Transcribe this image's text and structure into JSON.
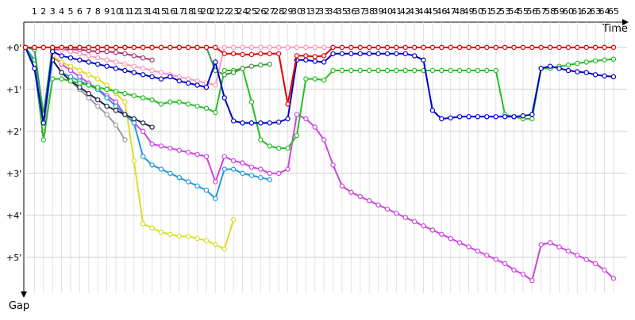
{
  "chart_data": {
    "type": "line",
    "x_label": "Time",
    "y_label": "Gap",
    "x": [
      0,
      1,
      2,
      3,
      4,
      5,
      6,
      7,
      8,
      9,
      10,
      11,
      12,
      13,
      14,
      15,
      16,
      17,
      18,
      19,
      20,
      21,
      22,
      23,
      24,
      25,
      26,
      27,
      28,
      29,
      30,
      31,
      32,
      33,
      34,
      35,
      36,
      37,
      38,
      39,
      40,
      41,
      42,
      43,
      44,
      45,
      46,
      47,
      48,
      49,
      50,
      51,
      52,
      53,
      54,
      55,
      56,
      57,
      58,
      59,
      60,
      61,
      62,
      63,
      64,
      65
    ],
    "xlim": [
      0,
      66.5
    ],
    "xticks": [
      1,
      2,
      3,
      4,
      5,
      6,
      7,
      8,
      9,
      10,
      11,
      12,
      13,
      14,
      15,
      16,
      17,
      18,
      19,
      20,
      21,
      22,
      23,
      24,
      25,
      26,
      27,
      28,
      29,
      30,
      31,
      32,
      33,
      34,
      35,
      36,
      37,
      38,
      39,
      40,
      41,
      42,
      43,
      44,
      45,
      46,
      47,
      48,
      49,
      50,
      51,
      52,
      53,
      54,
      55,
      56,
      57,
      58,
      59,
      60,
      61,
      62,
      63,
      64,
      65
    ],
    "ylim": [
      -0.6,
      5.85
    ],
    "y_inverted": true,
    "yticks": [
      {
        "value": 0,
        "label": "+0'"
      },
      {
        "value": 1,
        "label": "+1'"
      },
      {
        "value": 2,
        "label": "+2'"
      },
      {
        "value": 3,
        "label": "+3'"
      },
      {
        "value": 4,
        "label": "+4'"
      },
      {
        "value": 5,
        "label": "+5'"
      }
    ],
    "grid": true,
    "series": [
      {
        "color": "#cc44dd",
        "values": [
          0,
          0.3,
          2.0,
          0.2,
          0.4,
          0.55,
          0.7,
          0.85,
          1.0,
          1.15,
          1.3,
          1.6,
          1.8,
          2.0,
          2.3,
          2.35,
          2.4,
          2.45,
          2.5,
          2.55,
          2.6,
          3.2,
          2.6,
          2.7,
          2.75,
          2.85,
          2.9,
          3.0,
          3.0,
          2.9,
          1.6,
          1.7,
          1.9,
          2.2,
          2.8,
          3.3,
          3.45,
          3.55,
          3.65,
          3.75,
          3.85,
          3.95,
          4.05,
          4.15,
          4.25,
          4.35,
          4.45,
          4.55,
          4.65,
          4.75,
          4.85,
          4.95,
          5.05,
          5.15,
          5.3,
          5.4,
          5.55,
          4.7,
          4.65,
          4.75,
          4.85,
          4.95,
          5.05,
          5.15,
          5.3,
          5.5
        ]
      },
      {
        "color": "#dddd22",
        "values": [
          0,
          0.3,
          1.9,
          0.2,
          0.35,
          0.45,
          0.55,
          0.65,
          0.75,
          0.9,
          1.1,
          1.3,
          2.7,
          4.2,
          4.3,
          4.4,
          4.45,
          4.5,
          4.5,
          4.55,
          4.6,
          4.7,
          4.8,
          4.1,
          null,
          null,
          null,
          null,
          null,
          null,
          null,
          null,
          null,
          null,
          null,
          null,
          null,
          null,
          null,
          null,
          null,
          null,
          null,
          null,
          null,
          null,
          null,
          null,
          null,
          null,
          null,
          null,
          null,
          null,
          null,
          null,
          null,
          null,
          null,
          null,
          null,
          null,
          null,
          null,
          null,
          null
        ]
      },
      {
        "color": "#2299dd",
        "values": [
          0,
          0.3,
          1.8,
          0.3,
          0.6,
          0.7,
          0.8,
          0.9,
          1.0,
          1.2,
          1.4,
          1.6,
          1.8,
          2.6,
          2.8,
          2.9,
          3.0,
          3.1,
          3.2,
          3.3,
          3.4,
          3.6,
          2.9,
          2.9,
          3.0,
          3.05,
          3.1,
          3.15,
          null,
          null,
          null,
          null,
          null,
          null,
          null,
          null,
          null,
          null,
          null,
          null,
          null,
          null,
          null,
          null,
          null,
          null,
          null,
          null,
          null,
          null,
          null,
          null,
          null,
          null,
          null,
          null,
          null,
          null,
          null,
          null,
          null,
          null,
          null,
          null,
          null,
          null
        ]
      },
      {
        "color": "#999999",
        "values": [
          null,
          null,
          null,
          0.3,
          0.6,
          0.8,
          1.0,
          1.2,
          1.4,
          1.6,
          1.85,
          2.2,
          null,
          null,
          null,
          null,
          null,
          null,
          null,
          null,
          null,
          null,
          null,
          null,
          null,
          null,
          null,
          null,
          null,
          null,
          null,
          null,
          null,
          null,
          null,
          null,
          null,
          null,
          null,
          null,
          null,
          null,
          null,
          null,
          null,
          null,
          null,
          null,
          null,
          null,
          null,
          null,
          null,
          null,
          null,
          null,
          null,
          null,
          null,
          null,
          null,
          null,
          null,
          null,
          null,
          null
        ]
      },
      {
        "color": "#222244",
        "values": [
          null,
          null,
          null,
          0.3,
          0.6,
          0.8,
          0.95,
          1.1,
          1.25,
          1.4,
          1.5,
          1.6,
          1.7,
          1.8,
          1.9,
          null,
          null,
          null,
          null,
          null,
          null,
          null,
          null,
          null,
          null,
          null,
          null,
          null,
          null,
          null,
          null,
          null,
          null,
          null,
          null,
          null,
          null,
          null,
          null,
          null,
          null,
          null,
          null,
          null,
          null,
          null,
          null,
          null,
          null,
          null,
          null,
          null,
          null,
          null,
          null,
          null,
          null,
          null,
          null,
          null,
          null,
          null,
          null,
          null,
          null,
          null
        ]
      },
      {
        "color": "#22c022",
        "values": [
          0,
          0.4,
          2.2,
          0.75,
          0.75,
          0.8,
          0.85,
          0.9,
          0.95,
          1.0,
          1.05,
          1.1,
          1.15,
          1.2,
          1.25,
          1.35,
          1.3,
          1.3,
          1.35,
          1.4,
          1.45,
          1.55,
          0.55,
          0.55,
          0.5,
          1.3,
          2.2,
          2.35,
          2.4,
          2.4,
          2.1,
          0.75,
          0.75,
          0.78,
          0.55,
          0.55,
          0.55,
          0.55,
          0.55,
          0.55,
          0.55,
          0.55,
          0.55,
          0.55,
          0.55,
          0.55,
          0.55,
          0.55,
          0.55,
          0.55,
          0.55,
          0.55,
          0.55,
          1.6,
          1.65,
          1.7,
          1.7,
          0.5,
          0.5,
          0.45,
          0.42,
          0.38,
          0.35,
          0.32,
          0.3,
          0.28
        ]
      },
      {
        "color": "#3a9a3a",
        "values": [
          0,
          0.05,
          1.6,
          0,
          0,
          0,
          0,
          0,
          0,
          0,
          0,
          0,
          0,
          0,
          0,
          0,
          0,
          0,
          0,
          0,
          0,
          0.55,
          0.65,
          0.6,
          0.5,
          0.45,
          0.42,
          0.4,
          null,
          null,
          null,
          null,
          null,
          null,
          null,
          null,
          null,
          null,
          null,
          null,
          null,
          null,
          null,
          null,
          null,
          null,
          null,
          null,
          null,
          null,
          null,
          null,
          null,
          null,
          null,
          null,
          null,
          null,
          null,
          null,
          null,
          null,
          null,
          null,
          null,
          null
        ]
      },
      {
        "color": "#aa3377",
        "values": [
          null,
          null,
          null,
          0.05,
          0.05,
          0.05,
          0.05,
          0.08,
          0.1,
          0.1,
          0.12,
          0.15,
          0.2,
          0.25,
          0.3,
          null,
          null,
          null,
          null,
          null,
          null,
          null,
          null,
          null,
          null,
          null,
          null,
          null,
          null,
          null,
          null,
          null,
          null,
          null,
          null,
          null,
          null,
          null,
          null,
          null,
          null,
          null,
          null,
          null,
          null,
          null,
          null,
          null,
          null,
          null,
          null,
          null,
          null,
          null,
          null,
          null,
          null,
          null,
          null,
          null,
          null,
          null,
          null,
          null,
          null,
          null
        ]
      },
      {
        "color": "#ff99bb",
        "values": [
          0,
          0,
          0,
          0,
          0.05,
          0.1,
          0.15,
          0.2,
          0.25,
          0.3,
          0.35,
          0.4,
          0.45,
          0.5,
          0.55,
          0.6,
          0.65,
          0.7,
          0.75,
          0.8,
          0.85,
          0.9,
          0,
          0,
          0,
          0,
          0,
          0,
          0,
          0,
          0,
          0,
          0,
          0,
          0,
          null,
          null,
          null,
          null,
          null,
          null,
          null,
          null,
          null,
          null,
          null,
          null,
          null,
          null,
          null,
          null,
          null,
          null,
          null,
          null,
          null,
          null,
          null,
          null,
          null,
          null,
          null,
          null,
          null,
          null,
          null
        ]
      },
      {
        "color": "#0000cc",
        "values": [
          0,
          0.5,
          1.8,
          0.1,
          0.2,
          0.25,
          0.3,
          0.35,
          0.4,
          0.45,
          0.5,
          0.55,
          0.6,
          0.65,
          0.7,
          0.75,
          0.7,
          0.8,
          0.85,
          0.9,
          0.95,
          0.35,
          1.2,
          1.75,
          1.8,
          1.8,
          1.8,
          1.8,
          1.78,
          1.7,
          0.3,
          0.3,
          0.33,
          0.35,
          0.15,
          0.15,
          0.15,
          0.15,
          0.15,
          0.15,
          0.15,
          0.15,
          0.15,
          0.2,
          0.3,
          1.5,
          1.7,
          1.68,
          1.65,
          1.65,
          1.65,
          1.65,
          1.65,
          1.65,
          1.65,
          1.63,
          1.6,
          0.5,
          0.45,
          0.5,
          0.55,
          0.58,
          0.6,
          0.65,
          0.68,
          0.7
        ]
      },
      {
        "color": "#e00000",
        "values": [
          0,
          0,
          0,
          0,
          0,
          0,
          0,
          0,
          0,
          0,
          0,
          0,
          0,
          0,
          0,
          0,
          0,
          0,
          0,
          0,
          0,
          0,
          0.15,
          0.15,
          0.17,
          0.17,
          0.15,
          0.15,
          0.15,
          1.35,
          0.2,
          0.2,
          0.22,
          0.2,
          0,
          0,
          0,
          0,
          0,
          0,
          0,
          0,
          0,
          0,
          0,
          0,
          0,
          0,
          0,
          0,
          0,
          0,
          0,
          0,
          0,
          0,
          0,
          0,
          0,
          0,
          0,
          0,
          0,
          0,
          0,
          0
        ]
      }
    ]
  }
}
